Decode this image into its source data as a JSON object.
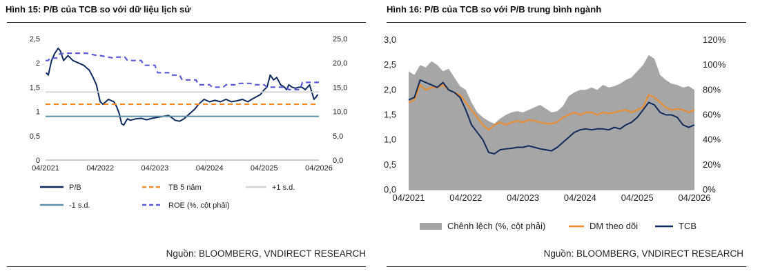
{
  "left": {
    "title": "Hình 15: P/B của TCB so với dữ liệu lịch sử",
    "source": "Nguồn: BLOOMBERG, VNDIRECT RESEARCH",
    "chart_data": {
      "type": "line",
      "title": "Hình 15: P/B của TCB so với dữ liệu lịch sử",
      "x_range": [
        2021.25,
        2026.25
      ],
      "xticks": [
        "04/2021",
        "04/2022",
        "04/2023",
        "04/2024",
        "04/2025",
        "04/2026"
      ],
      "y_left": {
        "range": [
          0,
          2.5
        ],
        "ticks": [
          "0",
          "0,5",
          "1",
          "1,5",
          "2",
          "2,5"
        ]
      },
      "y_right": {
        "range": [
          0,
          25
        ],
        "ticks": [
          "0,0",
          "5,0",
          "10,0",
          "15,0",
          "20,0",
          "25,0"
        ]
      },
      "series": [
        {
          "name": "P/B",
          "color": "#0e2a5c",
          "style": "solid",
          "axis": "left",
          "x": [
            2021.26,
            2021.3,
            2021.36,
            2021.42,
            2021.48,
            2021.52,
            2021.58,
            2021.66,
            2021.75,
            2021.85,
            2021.95,
            2022.05,
            2022.12,
            2022.18,
            2022.22,
            2022.25,
            2022.3,
            2022.4,
            2022.5,
            2022.55,
            2022.6,
            2022.64,
            2022.68,
            2022.72,
            2022.75,
            2022.8,
            2022.9,
            2023.0,
            2023.1,
            2023.2,
            2023.3,
            2023.4,
            2023.5,
            2023.55,
            2023.62,
            2023.7,
            2023.78,
            2023.88,
            2023.98,
            2024.05,
            2024.15,
            2024.25,
            2024.35,
            2024.45,
            2024.55,
            2024.65,
            2024.75,
            2024.85,
            2024.95,
            2025.02,
            2025.1,
            2025.18,
            2025.25,
            2025.3,
            2025.36,
            2025.42,
            2025.48,
            2025.55,
            2025.62,
            2025.66,
            2025.7,
            2025.76,
            2025.82,
            2025.88,
            2025.94,
            2026.0,
            2026.04,
            2026.08,
            2026.12,
            2026.16,
            2026.2,
            2026.23
          ],
          "y": [
            1.8,
            1.75,
            2.05,
            2.2,
            2.3,
            2.25,
            2.05,
            2.15,
            2.05,
            2.0,
            1.95,
            1.85,
            1.7,
            1.55,
            1.35,
            1.2,
            1.15,
            1.25,
            1.2,
            1.1,
            0.95,
            0.75,
            0.72,
            0.8,
            0.85,
            0.82,
            0.85,
            0.86,
            0.83,
            0.86,
            0.88,
            0.9,
            0.92,
            0.88,
            0.82,
            0.8,
            0.85,
            0.95,
            1.05,
            1.15,
            1.25,
            1.2,
            1.23,
            1.2,
            1.25,
            1.2,
            1.22,
            1.25,
            1.2,
            1.25,
            1.3,
            1.35,
            1.45,
            1.5,
            1.75,
            1.65,
            1.7,
            1.55,
            1.5,
            1.45,
            1.55,
            1.5,
            1.48,
            1.5,
            1.5,
            1.45,
            1.5,
            1.55,
            1.4,
            1.25,
            1.3,
            1.35
          ]
        },
        {
          "name": "TB 5 năm",
          "color": "#f28c28",
          "style": "dashed",
          "axis": "left",
          "x": [
            2021.25,
            2026.25
          ],
          "y": [
            1.15,
            1.15
          ]
        },
        {
          "name": "+1 s.d.",
          "color": "#d4d4d4",
          "style": "solid",
          "axis": "left",
          "x": [
            2021.25,
            2026.25
          ],
          "y": [
            1.4,
            1.4
          ]
        },
        {
          "name": "-1 s.d.",
          "color": "#5b8fa8",
          "style": "solid",
          "axis": "left",
          "x": [
            2021.25,
            2026.25
          ],
          "y": [
            0.9,
            0.9
          ]
        },
        {
          "name": "ROE (%, cột phải)",
          "color": "#5b5bd6",
          "style": "dashed",
          "axis": "right",
          "x": [
            2021.25,
            2021.3,
            2021.33,
            2021.45,
            2021.5,
            2021.6,
            2022.0,
            2022.2,
            2022.25,
            2022.5,
            2022.55,
            2022.7,
            2022.75,
            2023.0,
            2023.05,
            2023.25,
            2023.3,
            2023.5,
            2023.55,
            2023.7,
            2023.75,
            2024.0,
            2024.05,
            2024.25,
            2024.3,
            2024.5,
            2024.55,
            2024.75,
            2024.8,
            2025.0,
            2025.05,
            2025.25,
            2025.3,
            2025.65,
            2025.7,
            2025.9,
            2025.95,
            2026.0,
            2026.05,
            2026.25
          ],
          "y": [
            20.5,
            20.5,
            21.0,
            21.0,
            21.8,
            22.0,
            22.0,
            21.5,
            21.5,
            21.0,
            21.2,
            21.2,
            20.5,
            20.5,
            19.5,
            19.5,
            18.0,
            18.0,
            17.5,
            17.5,
            16.5,
            16.5,
            15.5,
            15.5,
            15.0,
            15.0,
            15.5,
            15.5,
            15.8,
            15.8,
            15.5,
            15.5,
            15.0,
            15.0,
            14.5,
            14.5,
            16.0,
            16.0,
            16.0,
            16.0
          ]
        }
      ],
      "legend": {
        "placement": "bottom",
        "items": [
          "P/B",
          "TB 5 năm",
          "+1 s.d.",
          "-1 s.d.",
          "ROE (%, cột phải)"
        ]
      }
    }
  },
  "right": {
    "title": "Hình 16: P/B của TCB so với P/B trung bình ngành",
    "source": "Nguồn: BLOOMBERG, VNDIRECT RESEARCH",
    "chart_data": {
      "type": "line",
      "title": "Hình 16: P/B của TCB so với P/B trung bình ngành",
      "x_range": [
        2021.25,
        2026.25
      ],
      "xticks": [
        "04/2021",
        "04/2022",
        "04/2023",
        "04/2024",
        "04/2025",
        "04/2026"
      ],
      "y_left": {
        "range": [
          0,
          3.0
        ],
        "ticks": [
          "0,0",
          "0,5",
          "1,0",
          "1,5",
          "2,0",
          "2,5",
          "3,0"
        ]
      },
      "y_right": {
        "range": [
          0,
          120
        ],
        "ticks": [
          "0%",
          "20%",
          "40%",
          "60%",
          "80%",
          "100%",
          "120%"
        ]
      },
      "series": [
        {
          "name": "Chênh lệch (%, cột phải)",
          "type": "area",
          "color": "#a6a6a6",
          "axis": "right",
          "x": [
            2021.25,
            2021.35,
            2021.45,
            2021.55,
            2021.65,
            2021.75,
            2021.85,
            2021.95,
            2022.05,
            2022.15,
            2022.25,
            2022.35,
            2022.45,
            2022.55,
            2022.65,
            2022.75,
            2022.85,
            2022.95,
            2023.05,
            2023.15,
            2023.25,
            2023.35,
            2023.45,
            2023.55,
            2023.65,
            2023.75,
            2023.85,
            2023.95,
            2024.05,
            2024.15,
            2024.25,
            2024.35,
            2024.45,
            2024.55,
            2024.65,
            2024.75,
            2024.85,
            2024.95,
            2025.05,
            2025.15,
            2025.25,
            2025.35,
            2025.45,
            2025.55,
            2025.65,
            2025.75,
            2025.85,
            2025.95,
            2026.05,
            2026.15,
            2026.25
          ],
          "y": [
            95,
            92,
            100,
            98,
            103,
            100,
            95,
            97,
            90,
            83,
            80,
            70,
            62,
            58,
            55,
            53,
            57,
            60,
            62,
            63,
            62,
            64,
            66,
            68,
            65,
            62,
            63,
            67,
            75,
            78,
            80,
            80,
            82,
            80,
            84,
            82,
            83,
            85,
            88,
            90,
            95,
            100,
            108,
            105,
            92,
            88,
            85,
            84,
            82,
            83,
            80
          ]
        },
        {
          "name": "DM theo dõi",
          "color": "#f28c28",
          "style": "solid",
          "axis": "left",
          "x": [
            2021.25,
            2021.35,
            2021.45,
            2021.55,
            2021.65,
            2021.75,
            2021.85,
            2021.95,
            2022.05,
            2022.15,
            2022.25,
            2022.35,
            2022.45,
            2022.55,
            2022.65,
            2022.75,
            2022.85,
            2022.95,
            2023.05,
            2023.15,
            2023.25,
            2023.35,
            2023.45,
            2023.55,
            2023.65,
            2023.75,
            2023.85,
            2023.95,
            2024.05,
            2024.15,
            2024.25,
            2024.35,
            2024.45,
            2024.55,
            2024.65,
            2024.75,
            2024.85,
            2024.95,
            2025.05,
            2025.15,
            2025.25,
            2025.35,
            2025.45,
            2025.55,
            2025.65,
            2025.75,
            2025.85,
            2025.95,
            2026.05,
            2026.15,
            2026.25
          ],
          "y": [
            1.75,
            1.8,
            2.1,
            2.0,
            2.05,
            2.05,
            2.1,
            2.0,
            1.95,
            1.9,
            1.75,
            1.6,
            1.45,
            1.3,
            1.2,
            1.3,
            1.35,
            1.3,
            1.35,
            1.38,
            1.35,
            1.4,
            1.38,
            1.35,
            1.33,
            1.32,
            1.36,
            1.45,
            1.5,
            1.55,
            1.5,
            1.55,
            1.55,
            1.5,
            1.55,
            1.53,
            1.55,
            1.58,
            1.6,
            1.55,
            1.6,
            1.65,
            1.9,
            1.85,
            1.75,
            1.65,
            1.6,
            1.62,
            1.6,
            1.55,
            1.6
          ]
        },
        {
          "name": "TCB",
          "color": "#0e2a5c",
          "style": "solid",
          "axis": "left",
          "x": [
            2021.25,
            2021.35,
            2021.45,
            2021.55,
            2021.65,
            2021.75,
            2021.85,
            2021.95,
            2022.05,
            2022.15,
            2022.25,
            2022.35,
            2022.45,
            2022.55,
            2022.65,
            2022.75,
            2022.85,
            2022.95,
            2023.05,
            2023.15,
            2023.25,
            2023.35,
            2023.45,
            2023.55,
            2023.65,
            2023.75,
            2023.85,
            2023.95,
            2024.05,
            2024.15,
            2024.25,
            2024.35,
            2024.45,
            2024.55,
            2024.65,
            2024.75,
            2024.85,
            2024.95,
            2025.05,
            2025.15,
            2025.25,
            2025.35,
            2025.45,
            2025.55,
            2025.65,
            2025.75,
            2025.85,
            2025.95,
            2026.05,
            2026.15,
            2026.25
          ],
          "y": [
            1.8,
            1.85,
            2.2,
            2.15,
            2.1,
            2.05,
            2.15,
            2.0,
            1.95,
            1.85,
            1.6,
            1.3,
            1.15,
            1.0,
            0.75,
            0.72,
            0.8,
            0.82,
            0.83,
            0.85,
            0.85,
            0.88,
            0.85,
            0.82,
            0.8,
            0.78,
            0.85,
            0.95,
            1.05,
            1.15,
            1.2,
            1.22,
            1.2,
            1.22,
            1.22,
            1.2,
            1.25,
            1.22,
            1.3,
            1.35,
            1.45,
            1.6,
            1.75,
            1.7,
            1.55,
            1.5,
            1.5,
            1.45,
            1.3,
            1.25,
            1.3
          ]
        }
      ],
      "legend": {
        "placement": "bottom",
        "items": [
          "Chênh lệch (%, cột phải)",
          "DM theo dõi",
          "TCB"
        ]
      }
    }
  }
}
